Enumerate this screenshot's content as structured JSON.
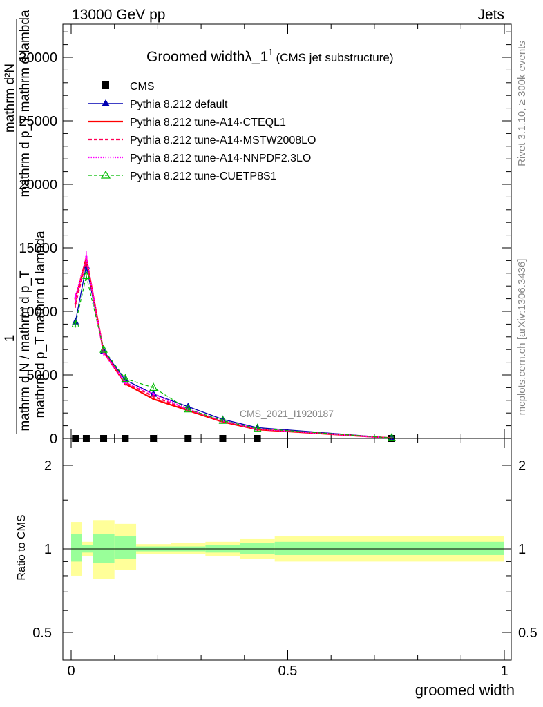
{
  "header": {
    "left": "13000 GeV pp",
    "right": "Jets"
  },
  "side_labels": {
    "rivet": "Rivet 3.1.10, ≥ 300k events",
    "mcplots": "mcplots.cern.ch [arXiv:1306.3436]"
  },
  "watermark": "CMS_2021_I1920187",
  "colors": {
    "default": "#0000b3",
    "a14_cteql1": "#ff0000",
    "a14_mstw": "#ff0055",
    "a14_nnpdf": "#ff00ff",
    "cuetp8s1": "#00bb00",
    "band_outer": "#ffff99",
    "band_inner": "#99ff99"
  },
  "chart_data": [
    {
      "type": "line",
      "title": "Groomed widthλ_1",
      "title_sup": "1",
      "title_suffix": "(CMS jet substructure)",
      "ylabel_lines": [
        "mathrm d²N",
        "mathrm d p_T mathrm d lambda",
        "1",
        "mathrm d N / mathrm d p_T",
        "mathrm d p_T mathrm d lambda"
      ],
      "xlim": [
        0,
        1
      ],
      "ylim": [
        0,
        32500
      ],
      "yticks": [
        0,
        5000,
        10000,
        15000,
        20000,
        25000,
        30000
      ],
      "ytick_labels": [
        "0",
        "5000",
        "10000",
        "15000",
        "20000",
        "25000",
        "30000"
      ],
      "legend": {
        "position": "top-left",
        "entries": [
          "CMS",
          "Pythia 8.212 default",
          "Pythia 8.212 tune-A14-CTEQL1",
          "Pythia 8.212 tune-A14-MSTW2008LO",
          "Pythia 8.212 tune-A14-NNPDF2.3LO",
          "Pythia 8.212 tune-CUETP8S1"
        ]
      },
      "x": [
        0.01,
        0.035,
        0.075,
        0.125,
        0.19,
        0.27,
        0.35,
        0.43,
        0.74
      ],
      "series": [
        {
          "name": "CMS",
          "values": [
            0,
            0,
            0,
            0,
            0,
            0,
            0,
            0,
            0
          ]
        },
        {
          "name": "Pythia 8.212 default",
          "values": [
            9200,
            13600,
            6900,
            4600,
            3500,
            2500,
            1500,
            850,
            40
          ]
        },
        {
          "name": "Pythia 8.212 tune-A14-CTEQL1",
          "values": [
            11000,
            14200,
            6800,
            4300,
            3100,
            2200,
            1300,
            700,
            30
          ]
        },
        {
          "name": "Pythia 8.212 tune-A14-MSTW2008LO",
          "values": [
            10600,
            14000,
            6800,
            4400,
            3300,
            2250,
            1350,
            750,
            30
          ]
        },
        {
          "name": "Pythia 8.212 tune-A14-NNPDF2.3LO",
          "values": [
            11100,
            14300,
            6700,
            4400,
            3500,
            2300,
            1400,
            750,
            30
          ]
        },
        {
          "name": "Pythia 8.212 tune-CUETP8S1",
          "values": [
            9000,
            12800,
            7000,
            4700,
            4000,
            2300,
            1400,
            780,
            40
          ]
        }
      ]
    },
    {
      "type": "area",
      "ylabel": "Ratio to CMS",
      "xlabel": "groomed width",
      "xlim": [
        0,
        1
      ],
      "ylim": [
        0.4,
        2.5
      ],
      "yscale": "log",
      "yticks": [
        0.5,
        1,
        2
      ],
      "ytick_labels": [
        "0.5",
        "1",
        "2"
      ],
      "xticks": [
        0,
        0.5,
        1
      ],
      "xtick_labels": [
        "0",
        "0.5",
        "1"
      ],
      "bins": [
        {
          "lo": 0.0,
          "hi": 0.025,
          "stat_lo": 0.9,
          "stat_hi": 1.13,
          "tot_lo": 0.8,
          "tot_hi": 1.25
        },
        {
          "lo": 0.025,
          "hi": 0.05,
          "stat_lo": 0.97,
          "stat_hi": 1.03,
          "tot_lo": 0.94,
          "tot_hi": 1.06
        },
        {
          "lo": 0.05,
          "hi": 0.1,
          "stat_lo": 0.89,
          "stat_hi": 1.13,
          "tot_lo": 0.78,
          "tot_hi": 1.27
        },
        {
          "lo": 0.1,
          "hi": 0.15,
          "stat_lo": 0.92,
          "stat_hi": 1.11,
          "tot_lo": 0.84,
          "tot_hi": 1.23
        },
        {
          "lo": 0.15,
          "hi": 0.23,
          "stat_lo": 0.98,
          "stat_hi": 1.02,
          "tot_lo": 0.96,
          "tot_hi": 1.04
        },
        {
          "lo": 0.23,
          "hi": 0.31,
          "stat_lo": 0.98,
          "stat_hi": 1.02,
          "tot_lo": 0.96,
          "tot_hi": 1.05
        },
        {
          "lo": 0.31,
          "hi": 0.39,
          "stat_lo": 0.97,
          "stat_hi": 1.03,
          "tot_lo": 0.94,
          "tot_hi": 1.06
        },
        {
          "lo": 0.39,
          "hi": 0.47,
          "stat_lo": 0.96,
          "stat_hi": 1.05,
          "tot_lo": 0.92,
          "tot_hi": 1.09
        },
        {
          "lo": 0.47,
          "hi": 1.0,
          "stat_lo": 0.95,
          "stat_hi": 1.06,
          "tot_lo": 0.9,
          "tot_hi": 1.11
        }
      ]
    }
  ]
}
